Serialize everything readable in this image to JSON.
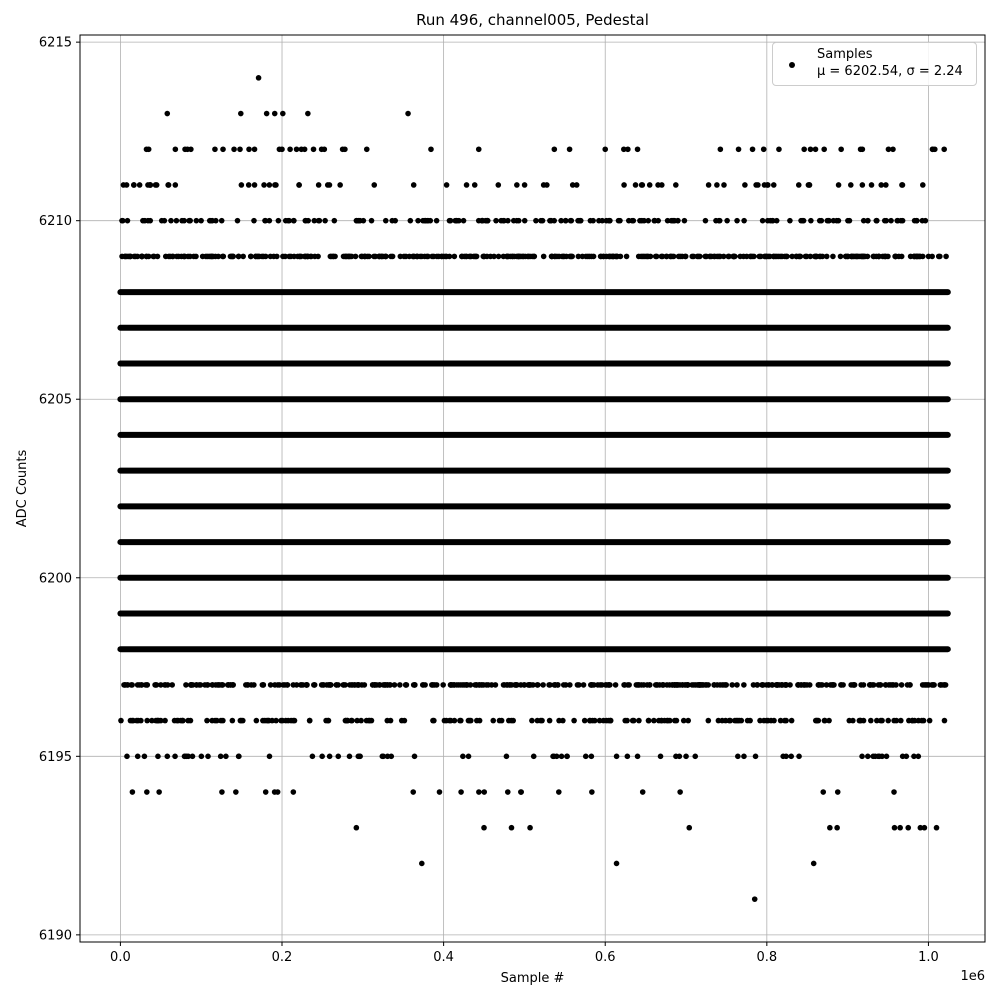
{
  "chart_data": {
    "type": "scatter",
    "title": "Run 496, channel005, Pedestal",
    "xlabel": "Sample #",
    "ylabel": "ADC Counts",
    "x_offset_text": "1e6",
    "xlim": [
      -0.05,
      1.07
    ],
    "ylim": [
      6189.8,
      6215.2
    ],
    "x_ticks": [
      0.0,
      0.2,
      0.4,
      0.6,
      0.8,
      1.0
    ],
    "x_tick_labels": [
      "0.0",
      "0.2",
      "0.4",
      "0.6",
      "0.8",
      "1.0"
    ],
    "y_ticks": [
      6190,
      6195,
      6200,
      6205,
      6210,
      6215
    ],
    "y_tick_labels": [
      "6190",
      "6195",
      "6200",
      "6205",
      "6210",
      "6215"
    ],
    "grid": true,
    "marker_color": "#000000",
    "legend": {
      "placement": "top-right",
      "name": "Samples",
      "stats": "μ = 6202.54, σ = 2.24"
    },
    "x_range_of_samples": [
      0.0,
      1.024
    ],
    "bands": [
      {
        "y": 6198,
        "density": "continuous"
      },
      {
        "y": 6199,
        "density": "continuous"
      },
      {
        "y": 6200,
        "density": "continuous"
      },
      {
        "y": 6201,
        "density": "continuous"
      },
      {
        "y": 6202,
        "density": "continuous"
      },
      {
        "y": 6203,
        "density": "continuous"
      },
      {
        "y": 6204,
        "density": "continuous"
      },
      {
        "y": 6205,
        "density": "continuous"
      },
      {
        "y": 6206,
        "density": "continuous"
      },
      {
        "y": 6207,
        "density": "continuous"
      },
      {
        "y": 6208,
        "density": "continuous"
      },
      {
        "y": 6197,
        "density": "dense"
      },
      {
        "y": 6209,
        "density": "dense"
      },
      {
        "y": 6196,
        "density": "medium"
      },
      {
        "y": 6210,
        "density": "medium"
      },
      {
        "y": 6195,
        "density": "sparse"
      },
      {
        "y": 6211,
        "density": "sparse"
      },
      {
        "y": 6194,
        "density": "very-sparse"
      },
      {
        "y": 6212,
        "density": "very-sparse"
      }
    ],
    "points": [
      {
        "x": 0.058,
        "y": 6213
      },
      {
        "x": 0.149,
        "y": 6213
      },
      {
        "x": 0.181,
        "y": 6213
      },
      {
        "x": 0.191,
        "y": 6213
      },
      {
        "x": 0.201,
        "y": 6213
      },
      {
        "x": 0.232,
        "y": 6213
      },
      {
        "x": 0.356,
        "y": 6213
      },
      {
        "x": 0.171,
        "y": 6214
      },
      {
        "x": 0.035,
        "y": 6212
      },
      {
        "x": 0.068,
        "y": 6212
      },
      {
        "x": 0.08,
        "y": 6212
      },
      {
        "x": 0.083,
        "y": 6212
      },
      {
        "x": 0.117,
        "y": 6212
      },
      {
        "x": 0.127,
        "y": 6212
      },
      {
        "x": 0.148,
        "y": 6212
      },
      {
        "x": 0.166,
        "y": 6212
      },
      {
        "x": 0.2,
        "y": 6212
      },
      {
        "x": 0.21,
        "y": 6212
      },
      {
        "x": 0.218,
        "y": 6212
      },
      {
        "x": 0.224,
        "y": 6212
      },
      {
        "x": 0.228,
        "y": 6212
      },
      {
        "x": 0.239,
        "y": 6212
      },
      {
        "x": 0.249,
        "y": 6212
      },
      {
        "x": 0.275,
        "y": 6212
      },
      {
        "x": 0.537,
        "y": 6212
      },
      {
        "x": 0.6,
        "y": 6212
      },
      {
        "x": 0.623,
        "y": 6212
      },
      {
        "x": 0.628,
        "y": 6212
      },
      {
        "x": 0.64,
        "y": 6212
      },
      {
        "x": 0.765,
        "y": 6212
      },
      {
        "x": 0.815,
        "y": 6212
      },
      {
        "x": 0.892,
        "y": 6212
      },
      {
        "x": 0.916,
        "y": 6212
      },
      {
        "x": 1.005,
        "y": 6212
      },
      {
        "x": 0.292,
        "y": 6193
      },
      {
        "x": 0.45,
        "y": 6193
      },
      {
        "x": 0.484,
        "y": 6193
      },
      {
        "x": 0.507,
        "y": 6193
      },
      {
        "x": 0.704,
        "y": 6193
      },
      {
        "x": 0.878,
        "y": 6193
      },
      {
        "x": 0.887,
        "y": 6193
      },
      {
        "x": 0.958,
        "y": 6193
      },
      {
        "x": 0.965,
        "y": 6193
      },
      {
        "x": 0.975,
        "y": 6193
      },
      {
        "x": 0.99,
        "y": 6193
      },
      {
        "x": 0.995,
        "y": 6193
      },
      {
        "x": 1.01,
        "y": 6193
      },
      {
        "x": 0.373,
        "y": 6192
      },
      {
        "x": 0.614,
        "y": 6192
      },
      {
        "x": 0.858,
        "y": 6192
      },
      {
        "x": 0.785,
        "y": 6191
      }
    ]
  }
}
